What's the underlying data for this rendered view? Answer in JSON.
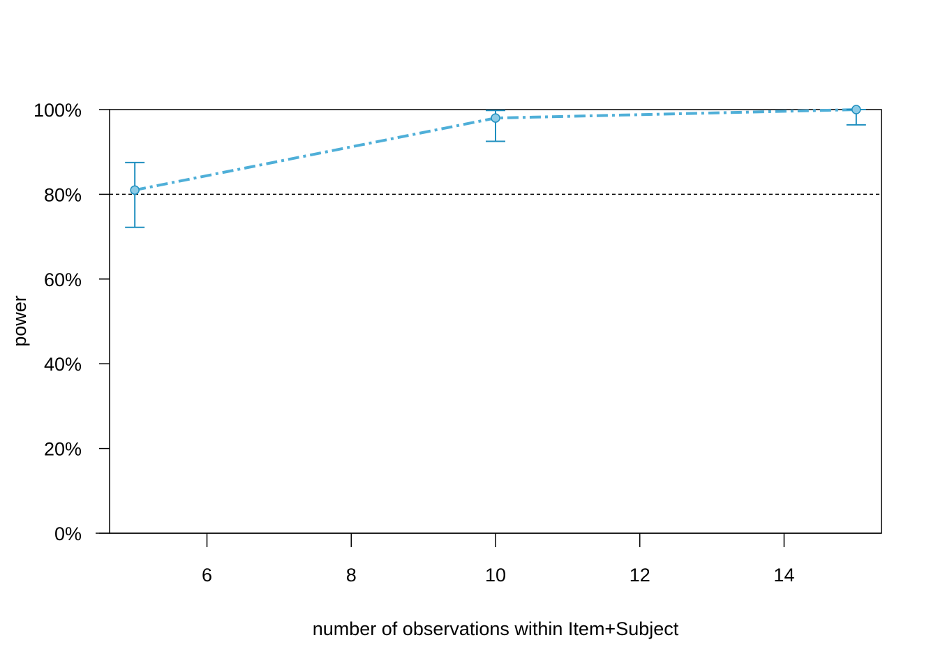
{
  "chart_data": {
    "type": "line",
    "title": "",
    "xlabel": "number of observations within Item+Subject",
    "ylabel": "power",
    "x": [
      5,
      10,
      15
    ],
    "series": [
      {
        "values": [
          0.81,
          0.98,
          1.0
        ],
        "ci_lower": [
          0.722,
          0.925,
          0.964
        ],
        "ci_upper": [
          0.875,
          0.998,
          1.0
        ],
        "line_style": "dash-dot",
        "color": "#4FAFD8",
        "marker_fill": "#8CCBE6",
        "errorbar_color": "#1F8FBF"
      }
    ],
    "reference_line": {
      "y": 0.8,
      "style": "dashed",
      "color": "#000000"
    },
    "xlim": [
      4.65,
      15.35
    ],
    "ylim": [
      0,
      1
    ],
    "x_ticks": [
      6,
      8,
      10,
      12,
      14
    ],
    "x_tick_labels": [
      "6",
      "8",
      "10",
      "12",
      "14"
    ],
    "y_ticks": [
      0,
      0.2,
      0.4,
      0.6,
      0.8,
      1.0
    ],
    "y_tick_labels": [
      "0%",
      "20%",
      "40%",
      "60%",
      "80%",
      "100%"
    ],
    "grid": false,
    "legend": "none"
  }
}
